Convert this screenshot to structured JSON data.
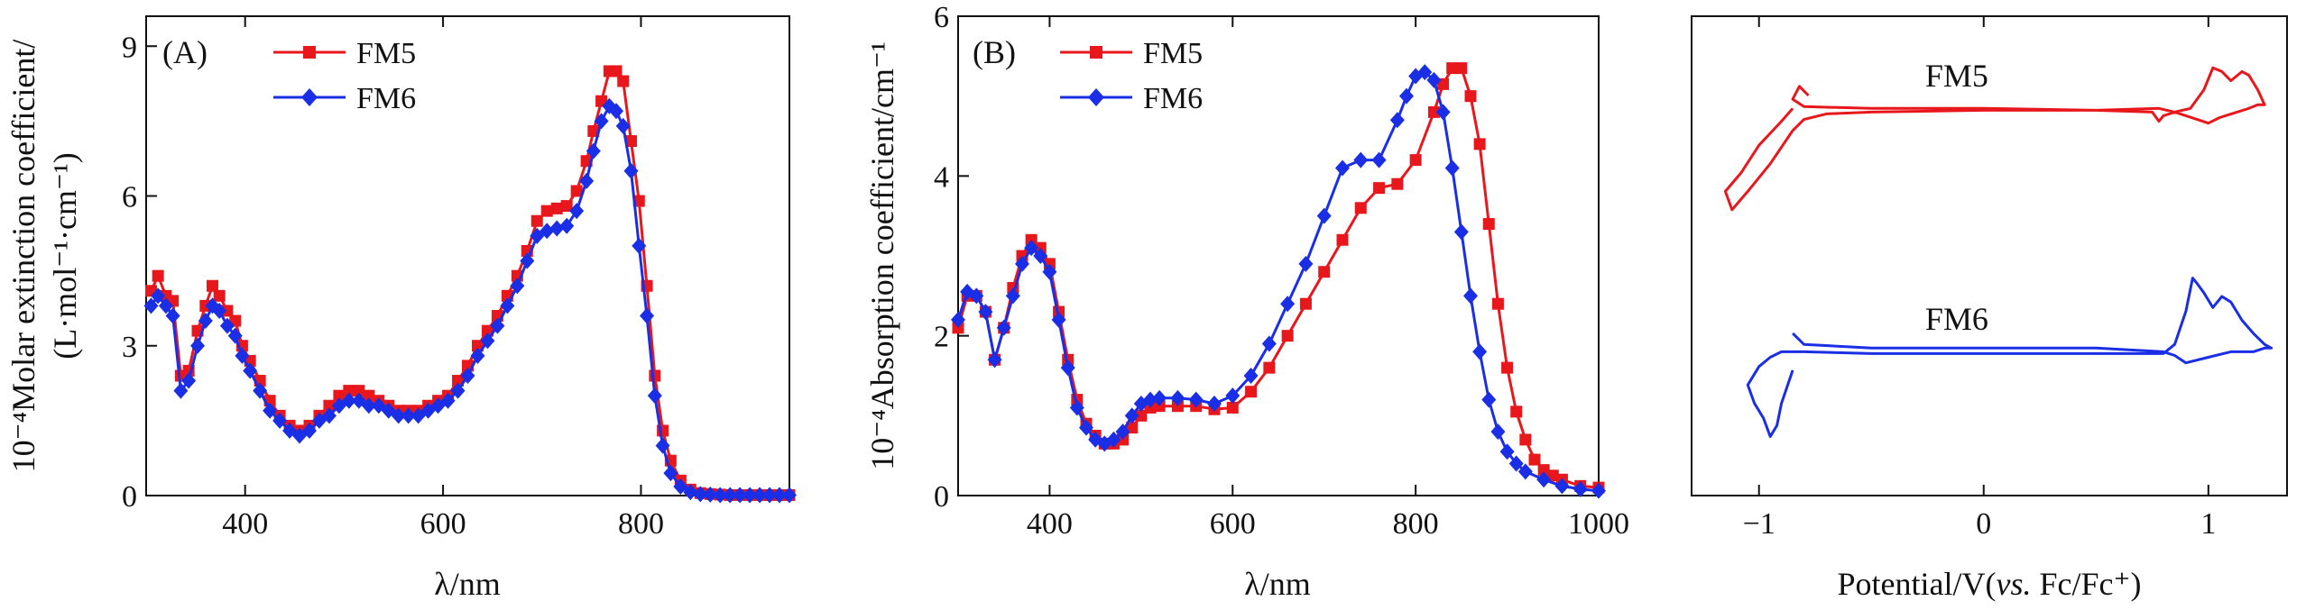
{
  "colors": {
    "fm5": "#e8171c",
    "fm6": "#1a2ee6",
    "axis": "#111111"
  },
  "chart_data": [
    {
      "type": "line",
      "panel_label": "(A)",
      "xlabel": "λ/nm",
      "ylabel_line1": "10⁻⁴Molar extinction coefficient/",
      "ylabel_line2": "(L·mol⁻¹·cm⁻¹)",
      "xlim": [
        300,
        950
      ],
      "ylim": [
        0,
        9.6
      ],
      "xticks": [
        400,
        600,
        800
      ],
      "xtick_labels": [
        "400",
        "600",
        "800"
      ],
      "yticks": [
        0,
        3,
        6,
        9
      ],
      "ytick_labels": [
        "0",
        "3",
        "6",
        "9"
      ],
      "legend": [
        "FM5",
        "FM6"
      ],
      "series": [
        {
          "name": "FM5",
          "marker": "square",
          "x": [
            305,
            312,
            320,
            327,
            335,
            343,
            352,
            360,
            367,
            374,
            382,
            390,
            397,
            405,
            415,
            425,
            435,
            445,
            455,
            465,
            475,
            485,
            495,
            505,
            515,
            525,
            535,
            545,
            555,
            565,
            575,
            585,
            595,
            605,
            615,
            625,
            635,
            645,
            655,
            665,
            675,
            685,
            695,
            705,
            715,
            725,
            735,
            745,
            752,
            760,
            768,
            775,
            782,
            790,
            798,
            806,
            814,
            822,
            830,
            840,
            850,
            860,
            870,
            880,
            890,
            900,
            910,
            920,
            930,
            940,
            950
          ],
          "y": [
            4.1,
            4.4,
            4.0,
            3.9,
            2.4,
            2.5,
            3.3,
            3.8,
            4.2,
            4.0,
            3.7,
            3.5,
            3.0,
            2.7,
            2.3,
            1.9,
            1.6,
            1.4,
            1.3,
            1.4,
            1.6,
            1.8,
            2.0,
            2.1,
            2.1,
            2.0,
            1.9,
            1.8,
            1.7,
            1.7,
            1.7,
            1.8,
            1.9,
            2.0,
            2.3,
            2.6,
            3.0,
            3.3,
            3.6,
            4.0,
            4.4,
            4.9,
            5.5,
            5.7,
            5.75,
            5.8,
            6.1,
            6.7,
            7.3,
            7.9,
            8.5,
            8.5,
            8.3,
            7.1,
            5.9,
            4.2,
            2.4,
            1.3,
            0.7,
            0.3,
            0.12,
            0.05,
            0.03,
            0.02,
            0.01,
            0.01,
            0.01,
            0.01,
            0.01,
            0.01,
            0.01
          ]
        },
        {
          "name": "FM6",
          "marker": "diamond",
          "x": [
            305,
            312,
            320,
            327,
            335,
            343,
            352,
            360,
            367,
            374,
            382,
            390,
            397,
            405,
            415,
            425,
            435,
            445,
            455,
            465,
            475,
            485,
            495,
            505,
            515,
            525,
            535,
            545,
            555,
            565,
            575,
            585,
            595,
            605,
            615,
            625,
            635,
            645,
            655,
            665,
            675,
            685,
            695,
            705,
            715,
            725,
            735,
            745,
            752,
            760,
            768,
            775,
            782,
            790,
            798,
            806,
            814,
            822,
            830,
            840,
            850,
            860,
            870,
            880,
            890,
            900,
            910,
            920,
            930,
            940,
            950
          ],
          "y": [
            3.8,
            4.0,
            3.8,
            3.6,
            2.1,
            2.3,
            3.0,
            3.5,
            3.8,
            3.7,
            3.4,
            3.2,
            2.8,
            2.5,
            2.1,
            1.7,
            1.5,
            1.3,
            1.2,
            1.3,
            1.5,
            1.6,
            1.8,
            1.9,
            1.9,
            1.8,
            1.8,
            1.7,
            1.6,
            1.6,
            1.6,
            1.7,
            1.8,
            1.9,
            2.1,
            2.4,
            2.8,
            3.1,
            3.4,
            3.8,
            4.2,
            4.7,
            5.2,
            5.3,
            5.35,
            5.4,
            5.7,
            6.3,
            6.9,
            7.5,
            7.8,
            7.7,
            7.4,
            6.5,
            5.0,
            3.6,
            2.0,
            1.0,
            0.45,
            0.18,
            0.07,
            0.03,
            0.02,
            0.01,
            0.01,
            0.01,
            0.01,
            0.01,
            0.01,
            0.01,
            0.01
          ]
        }
      ]
    },
    {
      "type": "line",
      "panel_label": "(B)",
      "xlabel": "λ/nm",
      "ylabel_line1": "10⁻⁴Absorption coefficient/cm⁻¹",
      "xlim": [
        300,
        1000
      ],
      "ylim": [
        0,
        6
      ],
      "xticks": [
        400,
        600,
        800,
        1000
      ],
      "xtick_labels": [
        "400",
        "600",
        "800",
        "1000"
      ],
      "yticks": [
        0,
        2,
        4,
        6
      ],
      "ytick_labels": [
        "0",
        "2",
        "4",
        "6"
      ],
      "legend": [
        "FM5",
        "FM6"
      ],
      "series": [
        {
          "name": "FM5",
          "marker": "square",
          "x": [
            300,
            310,
            320,
            330,
            340,
            350,
            360,
            370,
            380,
            390,
            400,
            410,
            420,
            430,
            440,
            450,
            460,
            470,
            480,
            490,
            500,
            510,
            520,
            540,
            560,
            580,
            600,
            620,
            640,
            660,
            680,
            700,
            720,
            740,
            760,
            780,
            800,
            820,
            830,
            840,
            850,
            860,
            870,
            880,
            890,
            900,
            910,
            920,
            930,
            940,
            950,
            960,
            980,
            1000
          ],
          "y": [
            2.1,
            2.5,
            2.5,
            2.3,
            1.7,
            2.1,
            2.6,
            3.0,
            3.2,
            3.1,
            2.9,
            2.3,
            1.7,
            1.2,
            0.9,
            0.75,
            0.65,
            0.65,
            0.7,
            0.85,
            1.0,
            1.1,
            1.12,
            1.12,
            1.12,
            1.08,
            1.1,
            1.3,
            1.6,
            2.0,
            2.4,
            2.8,
            3.2,
            3.6,
            3.85,
            3.9,
            4.2,
            4.8,
            5.15,
            5.35,
            5.35,
            5.0,
            4.4,
            3.4,
            2.4,
            1.6,
            1.05,
            0.7,
            0.45,
            0.32,
            0.25,
            0.2,
            0.12,
            0.1
          ]
        },
        {
          "name": "FM6",
          "marker": "diamond",
          "x": [
            300,
            310,
            320,
            330,
            340,
            350,
            360,
            370,
            380,
            390,
            400,
            410,
            420,
            430,
            440,
            450,
            460,
            470,
            480,
            490,
            500,
            510,
            520,
            540,
            560,
            580,
            600,
            620,
            640,
            660,
            680,
            700,
            720,
            740,
            760,
            780,
            790,
            800,
            810,
            820,
            830,
            840,
            850,
            860,
            870,
            880,
            890,
            900,
            910,
            920,
            940,
            960,
            980,
            1000
          ],
          "y": [
            2.2,
            2.55,
            2.5,
            2.3,
            1.7,
            2.1,
            2.5,
            2.9,
            3.1,
            3.0,
            2.8,
            2.2,
            1.6,
            1.1,
            0.85,
            0.7,
            0.65,
            0.7,
            0.8,
            1.0,
            1.15,
            1.2,
            1.22,
            1.22,
            1.2,
            1.15,
            1.25,
            1.5,
            1.9,
            2.4,
            2.9,
            3.5,
            4.1,
            4.2,
            4.2,
            4.7,
            5.0,
            5.25,
            5.3,
            5.2,
            4.8,
            4.1,
            3.3,
            2.5,
            1.8,
            1.2,
            0.8,
            0.55,
            0.4,
            0.3,
            0.2,
            0.12,
            0.08,
            0.06
          ]
        }
      ]
    },
    {
      "type": "line",
      "panel_label": "",
      "xlabel": "Potential/V(vs. Fc/Fc⁺)",
      "xlabel_prefix": "Potential/V(",
      "xlabel_italic": "vs.",
      "xlabel_suffix": " Fc/Fc⁺)",
      "xlim": [
        -1.3,
        1.35
      ],
      "ylim": [
        -1.6,
        1.0
      ],
      "xticks": [
        -1,
        0,
        1
      ],
      "xtick_labels": [
        "−1",
        "0",
        "1"
      ],
      "yticks": [],
      "annotations": [
        "FM5",
        "FM6"
      ],
      "series": [
        {
          "name": "FM5",
          "x": [
            -0.85,
            -0.9,
            -1.0,
            -1.08,
            -1.15,
            -1.12,
            -1.05,
            -0.95,
            -0.85,
            -0.8,
            -0.7,
            -0.5,
            0.0,
            0.5,
            0.75,
            0.78,
            0.8,
            0.85,
            0.92,
            0.98,
            1.02,
            1.06,
            1.1,
            1.15,
            1.18,
            1.22,
            1.25,
            1.22,
            1.18,
            1.05,
            1.0,
            0.95,
            0.85,
            0.78,
            0.5,
            0.0,
            -0.5,
            -0.8,
            -0.85,
            -0.82,
            -0.78
          ],
          "y": [
            0.5,
            0.43,
            0.3,
            0.15,
            0.05,
            -0.05,
            0.05,
            0.2,
            0.38,
            0.44,
            0.47,
            0.48,
            0.49,
            0.49,
            0.48,
            0.43,
            0.46,
            0.48,
            0.5,
            0.6,
            0.72,
            0.7,
            0.65,
            0.7,
            0.68,
            0.6,
            0.52,
            0.52,
            0.5,
            0.45,
            0.42,
            0.44,
            0.48,
            0.5,
            0.49,
            0.5,
            0.5,
            0.51,
            0.55,
            0.62,
            0.57
          ]
        },
        {
          "name": "FM6",
          "x": [
            -0.85,
            -0.9,
            -0.92,
            -0.95,
            -0.98,
            -1.02,
            -1.05,
            -1.0,
            -0.95,
            -0.9,
            -0.8,
            -0.5,
            0.0,
            0.5,
            0.8,
            0.85,
            0.9,
            0.93,
            0.95,
            0.98,
            1.02,
            1.06,
            1.1,
            1.15,
            1.2,
            1.25,
            1.28,
            1.25,
            1.2,
            1.1,
            1.0,
            0.9,
            0.85,
            0.8,
            0.5,
            0.0,
            -0.5,
            -0.8,
            -0.85
          ],
          "y": [
            -0.92,
            -1.1,
            -1.22,
            -1.28,
            -1.18,
            -1.1,
            -1.0,
            -0.9,
            -0.85,
            -0.82,
            -0.82,
            -0.83,
            -0.83,
            -0.83,
            -0.83,
            -0.78,
            -0.6,
            -0.42,
            -0.45,
            -0.5,
            -0.58,
            -0.52,
            -0.55,
            -0.65,
            -0.72,
            -0.78,
            -0.8,
            -0.8,
            -0.82,
            -0.82,
            -0.85,
            -0.88,
            -0.84,
            -0.82,
            -0.8,
            -0.8,
            -0.8,
            -0.78,
            -0.72
          ]
        }
      ]
    }
  ]
}
